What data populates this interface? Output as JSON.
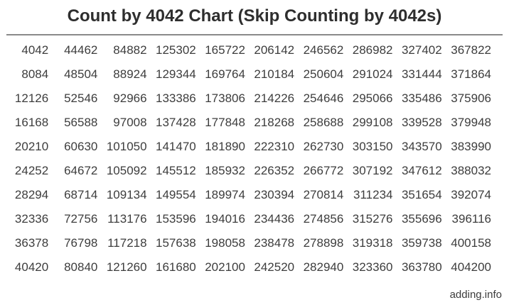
{
  "title": "Count by 4042 Chart (Skip Counting by 4042s)",
  "footer": {
    "watermark": "adding.info"
  },
  "colors": {
    "title_text": "#2e2e2e",
    "number_text": "#3d3d3d",
    "divider": "#8a8a8a",
    "background": "#ffffff"
  },
  "chart_data": {
    "type": "table",
    "title": "Count by 4042 Chart (Skip Counting by 4042s)",
    "step": 4042,
    "first_value": 4042,
    "last_value": 404200,
    "order": "column-major",
    "rows": [
      [
        4042,
        44462,
        84882,
        125302,
        165722,
        206142,
        246562,
        286982,
        327402,
        367822
      ],
      [
        8084,
        48504,
        88924,
        129344,
        169764,
        210184,
        250604,
        291024,
        331444,
        371864
      ],
      [
        12126,
        52546,
        92966,
        133386,
        173806,
        214226,
        254646,
        295066,
        335486,
        375906
      ],
      [
        16168,
        56588,
        97008,
        137428,
        177848,
        218268,
        258688,
        299108,
        339528,
        379948
      ],
      [
        20210,
        60630,
        101050,
        141470,
        181890,
        222310,
        262730,
        303150,
        343570,
        383990
      ],
      [
        24252,
        64672,
        105092,
        145512,
        185932,
        226352,
        266772,
        307192,
        347612,
        388032
      ],
      [
        28294,
        68714,
        109134,
        149554,
        189974,
        230394,
        270814,
        311234,
        351654,
        392074
      ],
      [
        32336,
        72756,
        113176,
        153596,
        194016,
        234436,
        274856,
        315276,
        355696,
        396116
      ],
      [
        36378,
        76798,
        117218,
        157638,
        198058,
        238478,
        278898,
        319318,
        359738,
        400158
      ],
      [
        40420,
        80840,
        121260,
        161680,
        202100,
        242520,
        282940,
        323360,
        363780,
        404200
      ]
    ]
  }
}
